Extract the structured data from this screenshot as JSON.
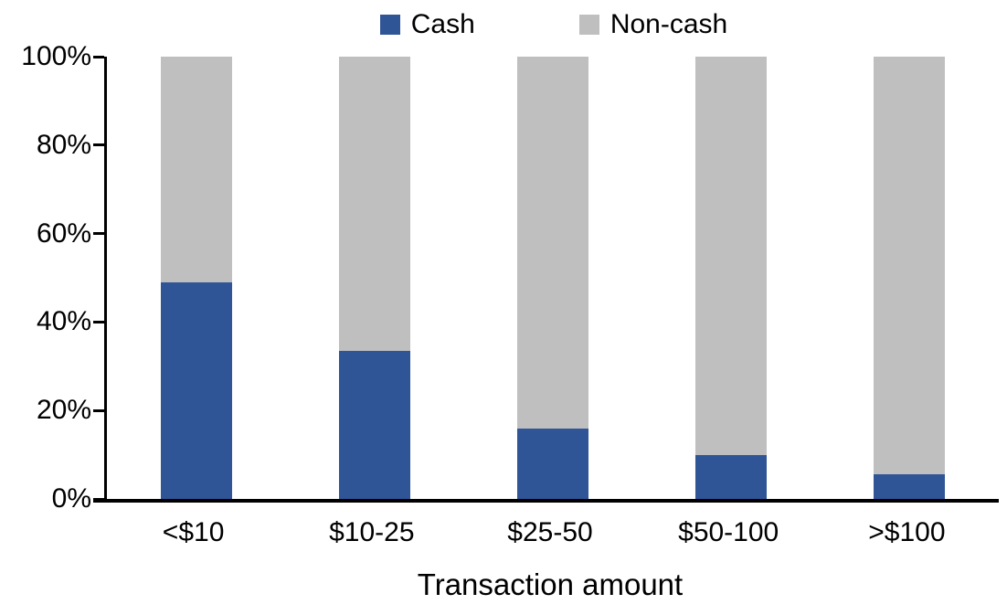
{
  "chart_data": {
    "type": "bar",
    "stacked": true,
    "stacked_mode": "percent",
    "title": "",
    "xlabel": "Transaction amount",
    "ylabel": "",
    "categories": [
      "<$10",
      "$10-25",
      "$25-50",
      "$50-100",
      ">$100"
    ],
    "series": [
      {
        "name": "Cash",
        "color": "#2F5597",
        "values": [
          49,
          33.5,
          16,
          10,
          5.5
        ]
      },
      {
        "name": "Non-cash",
        "color": "#BFBFBF",
        "values": [
          51,
          66.5,
          84,
          90,
          94.5
        ]
      }
    ],
    "ylim": [
      0,
      100
    ],
    "ytick_values": [
      0,
      20,
      40,
      60,
      80,
      100
    ],
    "ytick_labels": [
      "0%",
      "20%",
      "40%",
      "60%",
      "80%",
      "100%"
    ],
    "legend_position": "top",
    "grid": false,
    "axis_color": "#000000",
    "background_color": "#FFFFFF"
  }
}
